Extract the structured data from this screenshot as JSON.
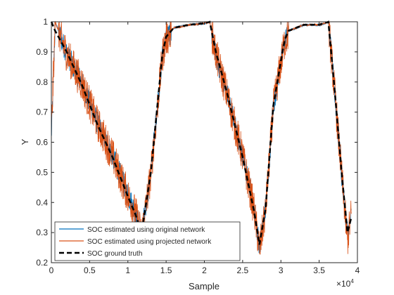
{
  "chart_data": {
    "type": "line",
    "title": "",
    "xlabel": "Sample",
    "ylabel": "Y",
    "x_exponent_label": "×10",
    "x_exponent_power": "4",
    "xlim": [
      0,
      40000
    ],
    "ylim": [
      0.2,
      1.0
    ],
    "x_ticks": [
      0,
      5000,
      10000,
      15000,
      20000,
      25000,
      30000,
      35000,
      40000
    ],
    "x_tick_labels": [
      "0",
      "0.5",
      "1",
      "1.5",
      "2",
      "2.5",
      "3",
      "3.5",
      "4"
    ],
    "y_ticks": [
      0.2,
      0.3,
      0.4,
      0.5,
      0.6,
      0.7,
      0.8,
      0.9,
      1.0
    ],
    "y_tick_labels": [
      "0.2",
      "0.3",
      "0.4",
      "0.5",
      "0.6",
      "0.7",
      "0.8",
      "0.9",
      "1"
    ],
    "grid": false,
    "legend_position": "bottom-left",
    "series": [
      {
        "name": "SOC estimated using original network",
        "color": "#0072BD",
        "style": "solid",
        "noise_profile": "high",
        "x": [
          0,
          500,
          2000,
          4000,
          6000,
          8000,
          10000,
          11000,
          11800,
          13000,
          14000,
          14500,
          15000,
          16000,
          18000,
          20000,
          20700,
          21500,
          23000,
          25000,
          26500,
          27200,
          28000,
          29000,
          30000,
          30500,
          31000,
          33000,
          35000,
          36200,
          37000,
          38000,
          38700,
          39200
        ],
        "values": [
          0.62,
          1.0,
          0.9,
          0.8,
          0.67,
          0.56,
          0.43,
          0.37,
          0.3,
          0.5,
          0.76,
          0.89,
          0.95,
          0.98,
          0.99,
          0.995,
          1.0,
          0.9,
          0.76,
          0.56,
          0.38,
          0.26,
          0.38,
          0.72,
          0.87,
          0.94,
          0.97,
          0.99,
          0.99,
          1.0,
          0.78,
          0.48,
          0.3,
          0.36
        ]
      },
      {
        "name": "SOC estimated using projected network",
        "color": "#D95319",
        "style": "solid",
        "noise_profile": "high",
        "x": [
          0,
          500,
          2000,
          4000,
          6000,
          8000,
          10000,
          11000,
          11800,
          13000,
          14000,
          14500,
          15000,
          16000,
          18000,
          20000,
          20700,
          21500,
          23000,
          25000,
          26500,
          27200,
          28000,
          29000,
          30000,
          30500,
          31000,
          33000,
          35000,
          36200,
          37000,
          38000,
          38700,
          39200
        ],
        "values": [
          0.63,
          1.0,
          0.9,
          0.8,
          0.67,
          0.56,
          0.43,
          0.37,
          0.3,
          0.5,
          0.76,
          0.89,
          0.95,
          0.98,
          0.99,
          0.995,
          1.0,
          0.9,
          0.76,
          0.56,
          0.38,
          0.25,
          0.38,
          0.72,
          0.87,
          0.94,
          0.97,
          0.99,
          0.99,
          1.0,
          0.78,
          0.48,
          0.28,
          0.37
        ]
      },
      {
        "name": "SOC ground truth",
        "color": "#000000",
        "style": "dashed",
        "noise_profile": "none",
        "x": [
          0,
          500,
          2000,
          4000,
          6000,
          8000,
          10000,
          11000,
          11800,
          13000,
          14000,
          14500,
          15000,
          16000,
          18000,
          20000,
          20700,
          21500,
          23000,
          25000,
          26500,
          27200,
          28000,
          29000,
          30000,
          30500,
          31000,
          33000,
          35000,
          36200,
          37000,
          38000,
          38700,
          39200
        ],
        "values": [
          1.0,
          0.97,
          0.9,
          0.79,
          0.66,
          0.55,
          0.42,
          0.36,
          0.3,
          0.5,
          0.76,
          0.89,
          0.95,
          0.98,
          0.99,
          0.995,
          1.0,
          0.9,
          0.76,
          0.55,
          0.37,
          0.26,
          0.38,
          0.72,
          0.87,
          0.94,
          0.97,
          0.99,
          0.99,
          1.0,
          0.78,
          0.48,
          0.3,
          0.35
        ]
      }
    ]
  }
}
